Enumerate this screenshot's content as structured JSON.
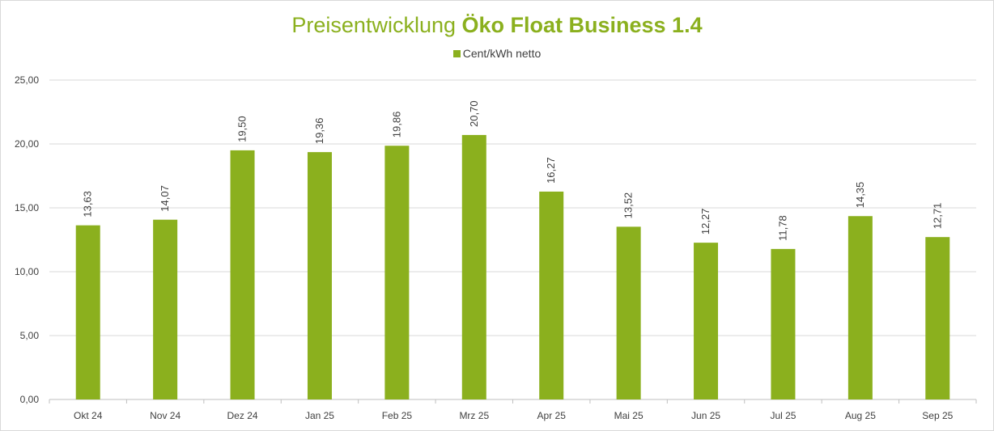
{
  "chart_data": {
    "type": "bar",
    "title_prefix": "Preisentwicklung ",
    "title_bold": "Öko Float Business 1.4",
    "legend": {
      "label": "Cent/kWh netto",
      "position": "top"
    },
    "series": [
      {
        "name": "Cent/kWh netto",
        "color": "#8bb01e"
      }
    ],
    "categories": [
      "Okt 24",
      "Nov 24",
      "Dez 24",
      "Jan 25",
      "Feb 25",
      "Mrz 25",
      "Apr 25",
      "Mai 25",
      "Jun 25",
      "Jul 25",
      "Aug 25",
      "Sep 25"
    ],
    "values": [
      13.63,
      14.07,
      19.5,
      19.36,
      19.86,
      20.7,
      16.27,
      13.52,
      12.27,
      11.78,
      14.35,
      12.71
    ],
    "value_labels": [
      "13,63",
      "14,07",
      "19,50",
      "19,36",
      "19,86",
      "20,70",
      "16,27",
      "13,52",
      "12,27",
      "11,78",
      "14,35",
      "12,71"
    ],
    "yticks": [
      0,
      5,
      10,
      15,
      20,
      25
    ],
    "ytick_labels": [
      "0,00",
      "5,00",
      "10,00",
      "15,00",
      "20,00",
      "25,00"
    ],
    "ylim": [
      0,
      25
    ],
    "grid": true,
    "gridline_color": "#d9d9d9",
    "bar_color": "#8bb01e"
  }
}
